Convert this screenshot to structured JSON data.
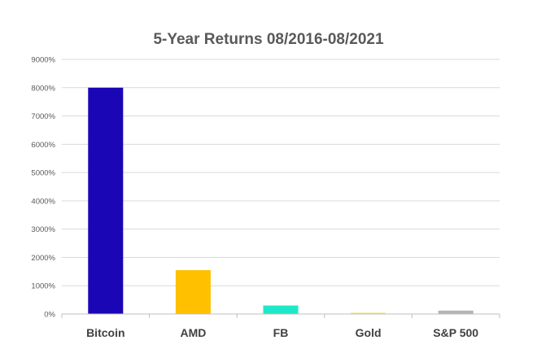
{
  "chart_data": {
    "type": "bar",
    "title": "5-Year Returns 08/2016-08/2021",
    "xlabel": "",
    "ylabel": "",
    "categories": [
      "Bitcoin",
      "AMD",
      "FB",
      "Gold",
      "S&P 500"
    ],
    "values": [
      8000,
      1550,
      300,
      40,
      120
    ],
    "colors": [
      "#1a06b4",
      "#ffc000",
      "#1de9c8",
      "#ffe24a",
      "#b3b3b3"
    ],
    "ylim": [
      0,
      9000
    ],
    "yticks": [
      0,
      1000,
      2000,
      3000,
      4000,
      5000,
      6000,
      7000,
      8000,
      9000
    ],
    "ytick_labels": [
      "0%",
      "1000%",
      "2000%",
      "3000%",
      "4000%",
      "5000%",
      "6000%",
      "7000%",
      "8000%",
      "9000%"
    ],
    "grid": true,
    "legend": "none"
  }
}
